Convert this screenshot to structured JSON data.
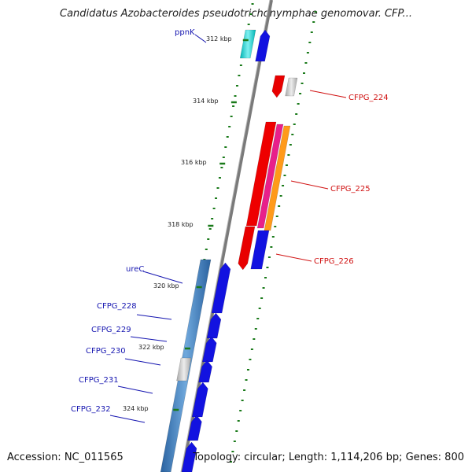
{
  "title": "Candidatus Azobacteroides pseudotrichonymphae genomovar. CFP...",
  "footer": {
    "accession": "Accession: NC_011565",
    "topology": "Topology: circular; Length: 1,114,206 bp; Genes: 800"
  },
  "colors": {
    "axis": "#808080",
    "tick": "#1a7a1a",
    "left_label": "#1515b0",
    "right_label": "#d01010"
  },
  "scale_labels": [
    "312 kbp",
    "314 kbp",
    "316 kbp",
    "318 kbp",
    "320 kbp",
    "322 kbp",
    "324 kbp"
  ],
  "gene_labels": {
    "left": [
      "ppnK",
      "ureC",
      "CFPG_228",
      "CFPG_229",
      "CFPG_230",
      "CFPG_231",
      "CFPG_232"
    ],
    "right": [
      "CFPG_224",
      "CFPG_225",
      "CFPG_226"
    ]
  }
}
